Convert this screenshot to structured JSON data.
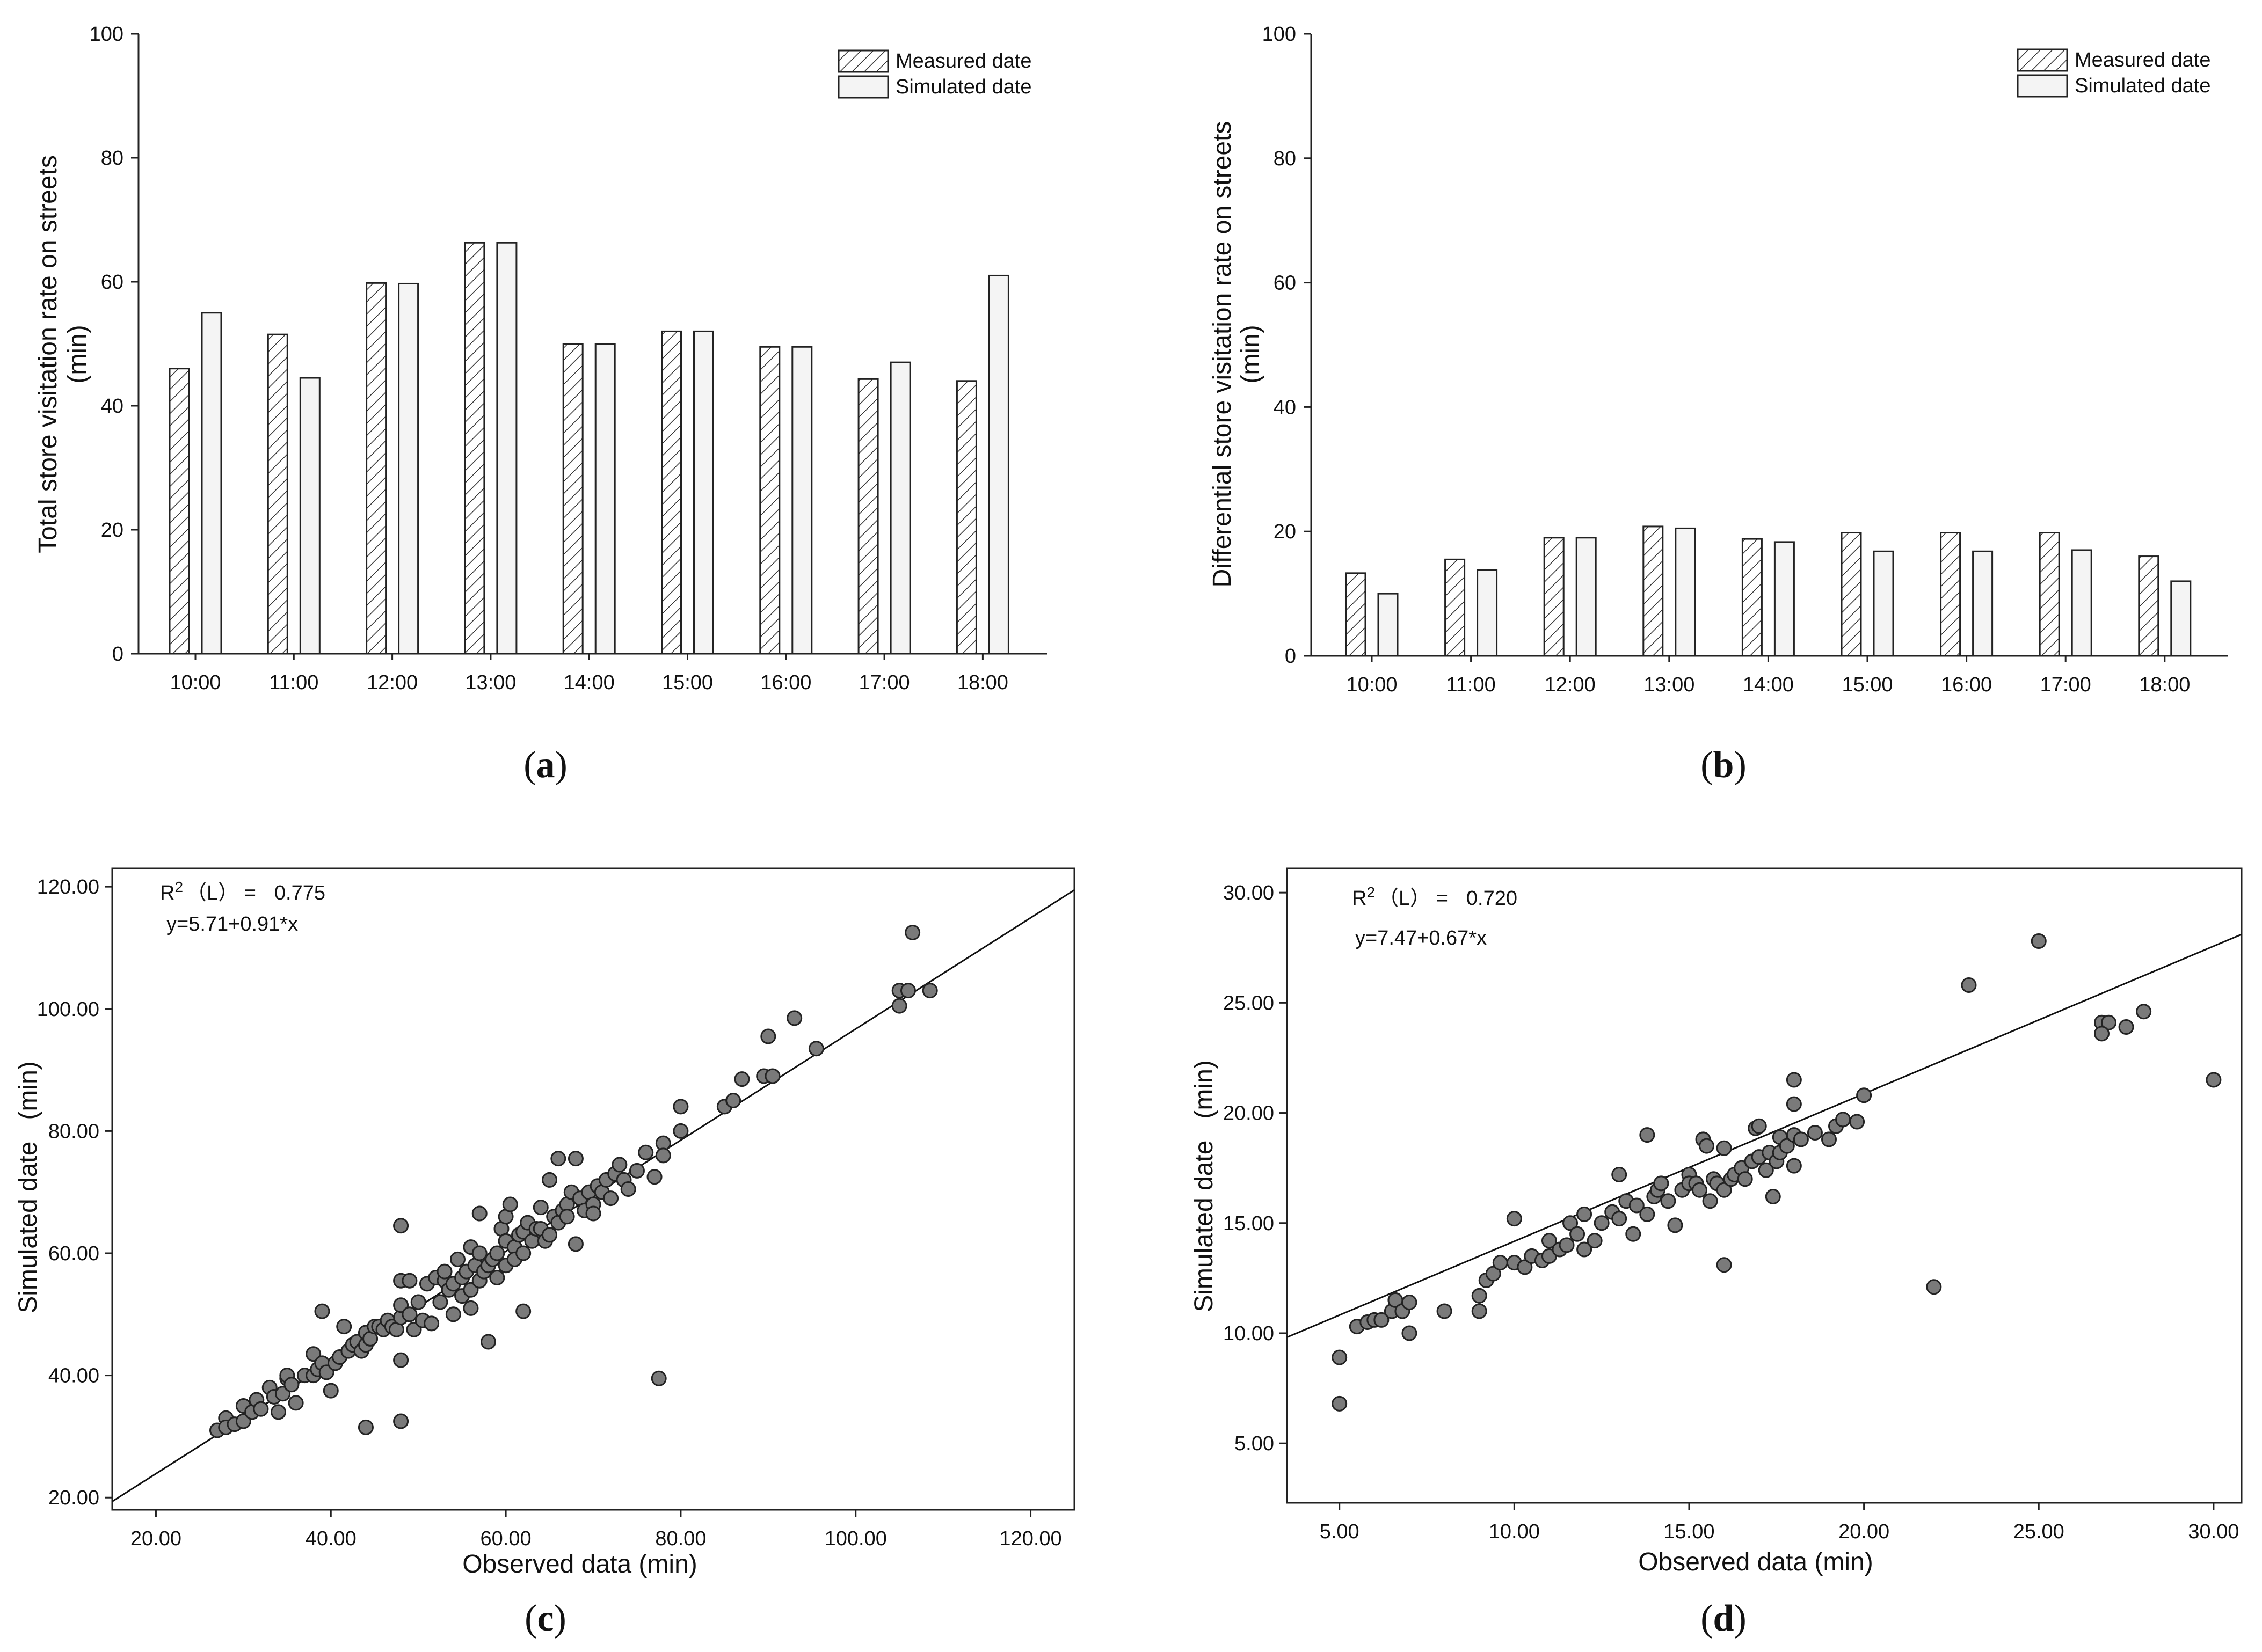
{
  "panels": [
    {
      "label": "(a)",
      "label_bold": "a"
    },
    {
      "label": "(b)",
      "label_bold": "b"
    },
    {
      "label": "(c)",
      "label_bold": "c"
    },
    {
      "label": "(d)",
      "label_bold": "d"
    }
  ],
  "chart_data": [
    {
      "type": "bar",
      "panel": "a",
      "title": "",
      "categories": [
        "10:00",
        "11:00",
        "12:00",
        "13:00",
        "14:00",
        "15:00",
        "16:00",
        "17:00",
        "18:00"
      ],
      "series": [
        {
          "name": "Measured date",
          "pattern": "hatched",
          "values": [
            46,
            51.5,
            59.8,
            66.3,
            50,
            52,
            49.5,
            44.3,
            44
          ]
        },
        {
          "name": "Simulated date",
          "pattern": "plain",
          "values": [
            55,
            44.5,
            59.7,
            66.3,
            50,
            52,
            49.5,
            47,
            61
          ]
        }
      ],
      "ylabel_lines": [
        "Total store visitation rate on streets",
        "(min)"
      ],
      "xlabel": "",
      "ylim": [
        0,
        100
      ],
      "yticks": [
        "0",
        "20",
        "40",
        "60",
        "80",
        "100"
      ],
      "legend_position": "top-right"
    },
    {
      "type": "bar",
      "panel": "b",
      "title": "",
      "categories": [
        "10:00",
        "11:00",
        "12:00",
        "13:00",
        "14:00",
        "15:00",
        "16:00",
        "17:00",
        "18:00"
      ],
      "series": [
        {
          "name": "Measured date",
          "pattern": "hatched",
          "values": [
            13.3,
            15.5,
            19,
            20.8,
            18.8,
            19.8,
            19.8,
            19.8,
            16
          ]
        },
        {
          "name": "Simulated date",
          "pattern": "plain",
          "values": [
            10,
            13.8,
            19,
            20.5,
            18.3,
            16.8,
            16.8,
            17,
            12
          ]
        }
      ],
      "ylabel_lines": [
        "Differential store visitation rate on streets",
        "(min)"
      ],
      "xlabel": "",
      "ylim": [
        0,
        100
      ],
      "yticks": [
        "0",
        "20",
        "40",
        "60",
        "80",
        "100"
      ],
      "legend_position": "top-right"
    },
    {
      "type": "scatter",
      "panel": "c",
      "title": "",
      "xlabel": "Observed data  (min)",
      "ylabel": "Simulated date   (min)",
      "xlim": [
        15,
        125
      ],
      "ylim": [
        18,
        123
      ],
      "xticks": [
        20,
        40,
        60,
        80,
        100,
        120
      ],
      "xtick_labels": [
        "20.00",
        "40.00",
        "60.00",
        "80.00",
        "100.00",
        "120.00"
      ],
      "yticks": [
        20,
        40,
        60,
        80,
        100,
        120
      ],
      "ytick_labels": [
        "20.00",
        "40.00",
        "60.00",
        "80.00",
        "100.00",
        "120.00"
      ],
      "annotation": {
        "r2_prefix": "R",
        "r2_sup": "2",
        "r2_suffix": "（L） =",
        "r2_value": "0.775",
        "equation": "y=5.71+0.91*x"
      },
      "fit": {
        "intercept": 5.71,
        "slope": 0.91
      },
      "points": [
        [
          27,
          31
        ],
        [
          28,
          33
        ],
        [
          28,
          31.5
        ],
        [
          29,
          32
        ],
        [
          30,
          32.5
        ],
        [
          30,
          35
        ],
        [
          31,
          34
        ],
        [
          31.5,
          36
        ],
        [
          32,
          34.5
        ],
        [
          33,
          38
        ],
        [
          33.5,
          36.5
        ],
        [
          34,
          34
        ],
        [
          34.5,
          37
        ],
        [
          35,
          39.5
        ],
        [
          35,
          40
        ],
        [
          35.5,
          38.5
        ],
        [
          36,
          35.5
        ],
        [
          37,
          40
        ],
        [
          38,
          40
        ],
        [
          38,
          43.5
        ],
        [
          38.5,
          41
        ],
        [
          39,
          42
        ],
        [
          39,
          50.5
        ],
        [
          39.5,
          40.5
        ],
        [
          40,
          37.5
        ],
        [
          40.5,
          42
        ],
        [
          41,
          43
        ],
        [
          41.5,
          48
        ],
        [
          42,
          44
        ],
        [
          42.5,
          45
        ],
        [
          43,
          45.5
        ],
        [
          43.5,
          44
        ],
        [
          44,
          45
        ],
        [
          44,
          47
        ],
        [
          44.5,
          46
        ],
        [
          45,
          48
        ],
        [
          45.5,
          48
        ],
        [
          46,
          47.5
        ],
        [
          46.5,
          49
        ],
        [
          47,
          48
        ],
        [
          47.5,
          47.5
        ],
        [
          48,
          49.5
        ],
        [
          48,
          51.5
        ],
        [
          48,
          55.5
        ],
        [
          48,
          64.5
        ],
        [
          48,
          42.5
        ],
        [
          48,
          32.5
        ],
        [
          44,
          31.5
        ],
        [
          49,
          50
        ],
        [
          49,
          55.5
        ],
        [
          49.5,
          47.5
        ],
        [
          50,
          52
        ],
        [
          50.5,
          49
        ],
        [
          51,
          55
        ],
        [
          51.5,
          48.5
        ],
        [
          52,
          56
        ],
        [
          52.5,
          52
        ],
        [
          53,
          55.5
        ],
        [
          53,
          57
        ],
        [
          53.5,
          54
        ],
        [
          54,
          55
        ],
        [
          54,
          50
        ],
        [
          54.5,
          59
        ],
        [
          55,
          56
        ],
        [
          55,
          53
        ],
        [
          55.5,
          57
        ],
        [
          56,
          54
        ],
        [
          56,
          61
        ],
        [
          56,
          51
        ],
        [
          56.5,
          58
        ],
        [
          57,
          55.5
        ],
        [
          57,
          60
        ],
        [
          57,
          66.5
        ],
        [
          57.5,
          57
        ],
        [
          58,
          58
        ],
        [
          58,
          45.5
        ],
        [
          58.5,
          59
        ],
        [
          59,
          60
        ],
        [
          59,
          56
        ],
        [
          59.5,
          64
        ],
        [
          60,
          62
        ],
        [
          60,
          58
        ],
        [
          60,
          66
        ],
        [
          60.5,
          68
        ],
        [
          61,
          61
        ],
        [
          61,
          59
        ],
        [
          61.5,
          63
        ],
        [
          62,
          63.5
        ],
        [
          62,
          60
        ],
        [
          62,
          50.5
        ],
        [
          62.5,
          65
        ],
        [
          63,
          62
        ],
        [
          63.5,
          64
        ],
        [
          64,
          67.5
        ],
        [
          64,
          64
        ],
        [
          64.5,
          62
        ],
        [
          65,
          63
        ],
        [
          65,
          72
        ],
        [
          65.5,
          66
        ],
        [
          66,
          65
        ],
        [
          66,
          75.5
        ],
        [
          66.5,
          67
        ],
        [
          67,
          68
        ],
        [
          67,
          66
        ],
        [
          67.5,
          70
        ],
        [
          68,
          75.5
        ],
        [
          68,
          61.5
        ],
        [
          68.5,
          69
        ],
        [
          69,
          67
        ],
        [
          69.5,
          70
        ],
        [
          70,
          68
        ],
        [
          70,
          66.5
        ],
        [
          70.5,
          71
        ],
        [
          71,
          70
        ],
        [
          71.5,
          72
        ],
        [
          72,
          69
        ],
        [
          72.5,
          73
        ],
        [
          73,
          74.5
        ],
        [
          73.5,
          72
        ],
        [
          74,
          70.5
        ],
        [
          75,
          73.5
        ],
        [
          76,
          76.5
        ],
        [
          77,
          72.5
        ],
        [
          77.5,
          39.5
        ],
        [
          78,
          78
        ],
        [
          78,
          76
        ],
        [
          80,
          80
        ],
        [
          80,
          84
        ],
        [
          85,
          84
        ],
        [
          86,
          85
        ],
        [
          87,
          88.5
        ],
        [
          89.5,
          89
        ],
        [
          90,
          95.5
        ],
        [
          90.5,
          89
        ],
        [
          93,
          98.5
        ],
        [
          95.5,
          93.5
        ],
        [
          105,
          103
        ],
        [
          105,
          100.5
        ],
        [
          106,
          103
        ],
        [
          106.5,
          112.5
        ],
        [
          108.5,
          103
        ]
      ]
    },
    {
      "type": "scatter",
      "panel": "d",
      "title": "",
      "xlabel": "Observed data  (min)",
      "ylabel": "Simulated date   (min)",
      "xlim": [
        3.5,
        30.8
      ],
      "ylim": [
        2.3,
        31.1
      ],
      "xticks": [
        5,
        10,
        15,
        20,
        25,
        30
      ],
      "xtick_labels": [
        "5.00",
        "10.00",
        "15.00",
        "20.00",
        "25.00",
        "30.00"
      ],
      "yticks": [
        5,
        10,
        15,
        20,
        25,
        30
      ],
      "ytick_labels": [
        "5.00",
        "10.00",
        "15.00",
        "20.00",
        "25.00",
        "30.00"
      ],
      "annotation": {
        "r2_prefix": "R",
        "r2_sup": "2",
        "r2_suffix": "（L） =",
        "r2_value": "0.720",
        "equation": "y=7.47+0.67*x"
      },
      "fit": {
        "intercept": 7.47,
        "slope": 0.67
      },
      "points": [
        [
          5,
          8.9
        ],
        [
          5,
          6.8
        ],
        [
          5.5,
          10.3
        ],
        [
          5.8,
          10.5
        ],
        [
          6,
          10.6
        ],
        [
          6.2,
          10.6
        ],
        [
          6.5,
          11
        ],
        [
          6.6,
          11.5
        ],
        [
          6.8,
          11
        ],
        [
          7,
          11.4
        ],
        [
          7,
          10
        ],
        [
          8,
          11
        ],
        [
          9,
          11.7
        ],
        [
          9,
          11
        ],
        [
          9.2,
          12.4
        ],
        [
          9.4,
          12.7
        ],
        [
          9.6,
          13.2
        ],
        [
          10,
          13.2
        ],
        [
          10,
          15.2
        ],
        [
          10.3,
          13
        ],
        [
          10.5,
          13.5
        ],
        [
          10.8,
          13.3
        ],
        [
          11,
          13.5
        ],
        [
          11,
          14.2
        ],
        [
          11.3,
          13.8
        ],
        [
          11.5,
          14
        ],
        [
          11.6,
          15
        ],
        [
          11.8,
          14.5
        ],
        [
          12,
          15.4
        ],
        [
          12,
          13.8
        ],
        [
          12.3,
          14.2
        ],
        [
          12.5,
          15
        ],
        [
          12.8,
          15.5
        ],
        [
          13,
          15.2
        ],
        [
          13,
          17.2
        ],
        [
          13.2,
          16
        ],
        [
          13.4,
          14.5
        ],
        [
          13.5,
          15.8
        ],
        [
          13.8,
          15.4
        ],
        [
          13.8,
          19
        ],
        [
          14,
          16.2
        ],
        [
          14.1,
          16.5
        ],
        [
          14.2,
          16.8
        ],
        [
          14.4,
          16
        ],
        [
          14.6,
          14.9
        ],
        [
          14.8,
          16.5
        ],
        [
          15,
          17.2
        ],
        [
          15,
          16.8
        ],
        [
          15.2,
          16.8
        ],
        [
          15.3,
          16.5
        ],
        [
          15.4,
          18.8
        ],
        [
          15.5,
          18.5
        ],
        [
          15.6,
          16
        ],
        [
          15.7,
          17
        ],
        [
          15.8,
          16.8
        ],
        [
          16,
          16.5
        ],
        [
          16,
          18.4
        ],
        [
          16,
          13.1
        ],
        [
          16.2,
          17
        ],
        [
          16.3,
          17.2
        ],
        [
          16.5,
          17.5
        ],
        [
          16.6,
          17
        ],
        [
          16.8,
          17.8
        ],
        [
          16.9,
          19.3
        ],
        [
          17,
          19.4
        ],
        [
          17,
          18
        ],
        [
          17.2,
          17.4
        ],
        [
          17.3,
          18.2
        ],
        [
          17.4,
          16.2
        ],
        [
          17.5,
          17.8
        ],
        [
          17.6,
          18.2
        ],
        [
          17.6,
          18.9
        ],
        [
          17.8,
          18.5
        ],
        [
          18,
          19
        ],
        [
          18,
          17.6
        ],
        [
          18,
          20.4
        ],
        [
          18,
          21.5
        ],
        [
          18.2,
          18.8
        ],
        [
          18.6,
          19.1
        ],
        [
          19,
          18.8
        ],
        [
          19.2,
          19.4
        ],
        [
          19.4,
          19.7
        ],
        [
          19.8,
          19.6
        ],
        [
          20,
          20.8
        ],
        [
          22,
          12.1
        ],
        [
          23,
          25.8
        ],
        [
          25,
          27.8
        ],
        [
          26.8,
          24.1
        ],
        [
          27,
          24.1
        ],
        [
          26.8,
          23.6
        ],
        [
          27.5,
          23.9
        ],
        [
          28,
          24.6
        ],
        [
          30,
          21.5
        ]
      ]
    }
  ]
}
